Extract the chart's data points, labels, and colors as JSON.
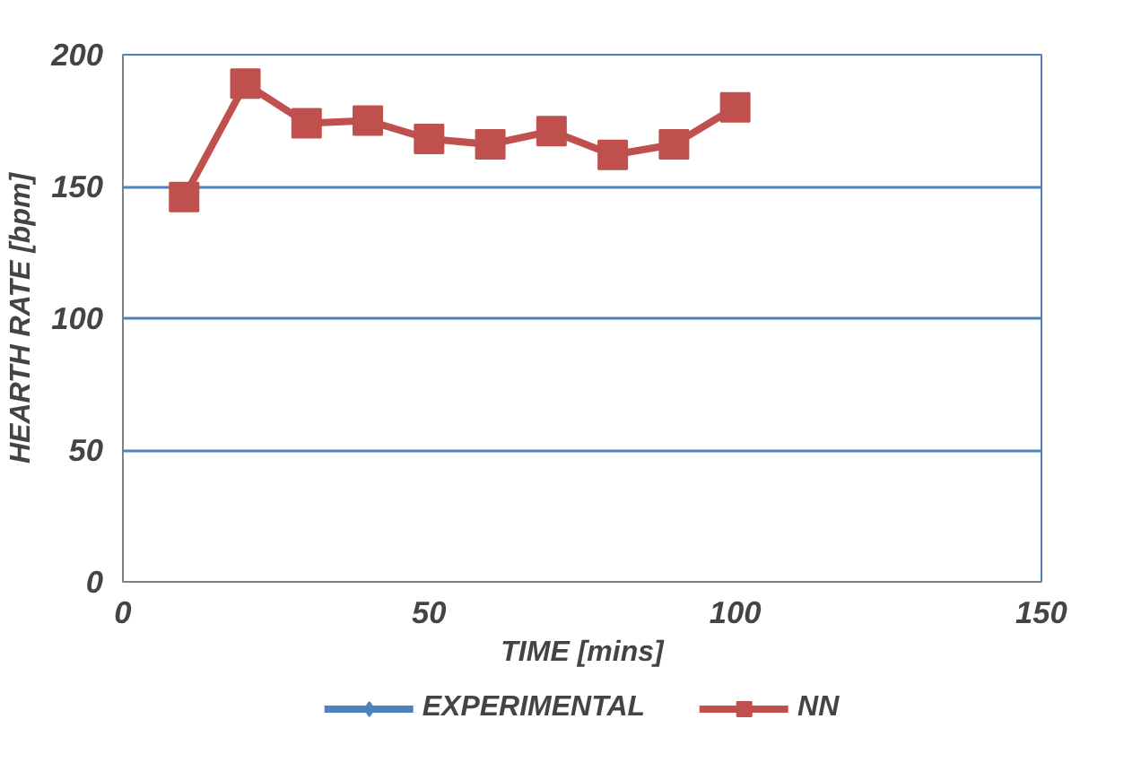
{
  "chart_data": {
    "type": "line",
    "xlabel": "TIME [mins]",
    "ylabel": "HEARTH RATE [bpm]",
    "x": [
      10,
      20,
      30,
      40,
      50,
      60,
      70,
      80,
      90,
      100
    ],
    "series": [
      {
        "name": "EXPERIMENTAL",
        "color": "#4f81bd",
        "marker": "diamond",
        "values": [
          null,
          null,
          null,
          null,
          null,
          null,
          null,
          null,
          null,
          null
        ]
      },
      {
        "name": "NN",
        "color": "#c0504d",
        "marker": "square",
        "values": [
          146,
          189,
          174,
          175,
          168,
          166,
          171,
          162,
          166,
          180
        ]
      }
    ],
    "xlim": [
      0,
      150
    ],
    "xticks": [
      0,
      50,
      100,
      150
    ],
    "ylim": [
      0,
      200
    ],
    "yticks": [
      0,
      50,
      100,
      150,
      200
    ],
    "grid": "y",
    "legend": "bottom"
  }
}
